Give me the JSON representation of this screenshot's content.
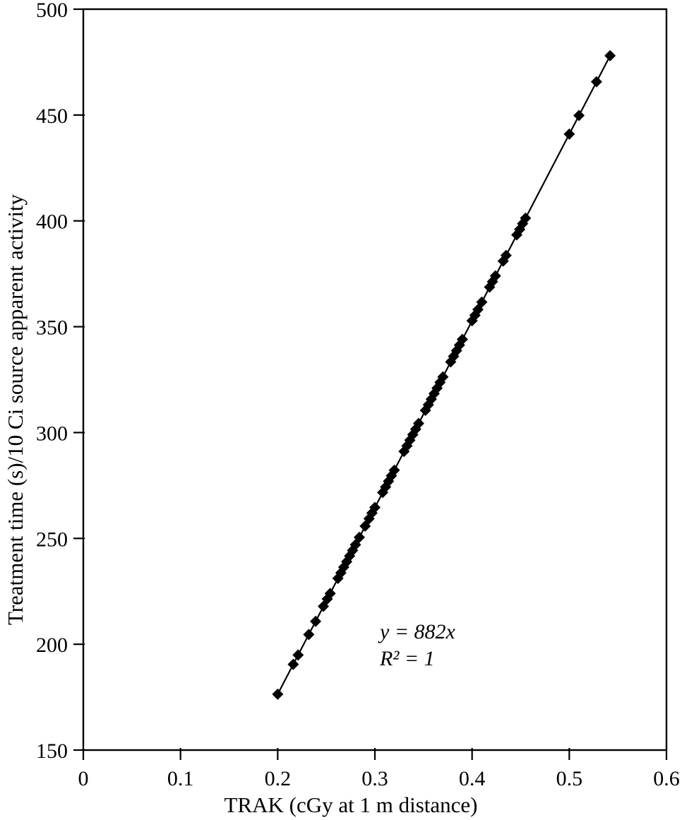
{
  "figure": {
    "background": "#ffffff",
    "ink_color": "#000000"
  },
  "annotation": {
    "line1": "y = 882x",
    "line2": "R² = 1"
  },
  "chart_data": {
    "type": "scatter",
    "title": "",
    "xlabel": "TRAK (cGy at 1 m distance)",
    "ylabel": "Treatment time (s)/10 Ci source apparent activity",
    "xlim": [
      0,
      0.6
    ],
    "ylim": [
      150,
      500
    ],
    "x_ticks": [
      0,
      0.1,
      0.2,
      0.3,
      0.4,
      0.5,
      0.6
    ],
    "x_tick_labels": [
      "0",
      "0.1",
      "0.2",
      "0.3",
      "0.4",
      "0.5",
      "0.6"
    ],
    "y_ticks": [
      150,
      200,
      250,
      300,
      350,
      400,
      450,
      500
    ],
    "y_tick_labels": [
      "150",
      "200",
      "250",
      "300",
      "350",
      "400",
      "450",
      "500"
    ],
    "grid": false,
    "legend_position": "none",
    "marker": "diamond",
    "marker_color": "#000000",
    "line_color": "#000000",
    "trendline": {
      "equation": "y = 882x",
      "r_squared": 1,
      "slope": 882,
      "intercept": 0
    },
    "series": [
      {
        "name": "treatment-time-vs-trak",
        "x": [
          0.2,
          0.216,
          0.221,
          0.232,
          0.239,
          0.247,
          0.251,
          0.254,
          0.262,
          0.265,
          0.268,
          0.271,
          0.274,
          0.277,
          0.28,
          0.284,
          0.29,
          0.294,
          0.297,
          0.3,
          0.308,
          0.311,
          0.314,
          0.317,
          0.32,
          0.33,
          0.333,
          0.336,
          0.339,
          0.342,
          0.345,
          0.352,
          0.355,
          0.358,
          0.361,
          0.364,
          0.367,
          0.37,
          0.378,
          0.381,
          0.384,
          0.387,
          0.39,
          0.4,
          0.403,
          0.406,
          0.41,
          0.418,
          0.421,
          0.424,
          0.432,
          0.435,
          0.446,
          0.449,
          0.452,
          0.455,
          0.5,
          0.51,
          0.528,
          0.542
        ],
        "y": [
          176.4,
          190.5,
          194.9,
          204.6,
          210.8,
          217.9,
          221.4,
          224.0,
          231.1,
          233.7,
          236.4,
          239.0,
          241.7,
          244.3,
          247.0,
          250.5,
          255.8,
          259.3,
          262.0,
          264.6,
          271.7,
          274.3,
          277.0,
          279.6,
          282.2,
          291.1,
          293.7,
          296.4,
          299.0,
          301.6,
          304.3,
          310.5,
          313.1,
          315.8,
          318.4,
          321.0,
          323.7,
          326.3,
          333.4,
          336.0,
          338.7,
          341.3,
          344.0,
          352.8,
          355.4,
          358.1,
          361.6,
          368.7,
          371.3,
          374.0,
          381.0,
          383.7,
          393.4,
          396.0,
          398.7,
          401.3,
          441.0,
          449.8,
          465.7,
          478.0
        ]
      }
    ]
  }
}
